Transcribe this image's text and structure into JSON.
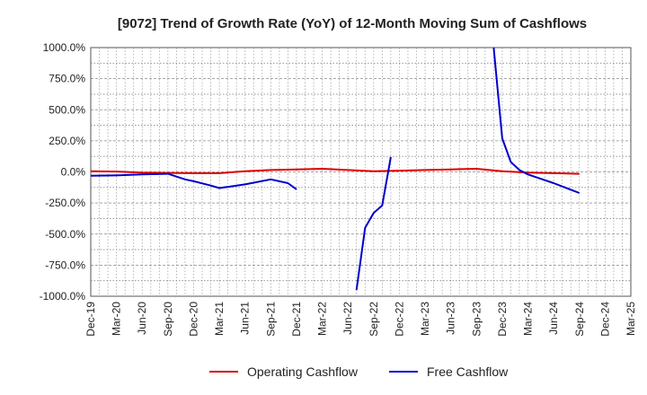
{
  "chart_data": {
    "type": "line",
    "title": "[9072]  Trend of Growth Rate (YoY) of 12-Month Moving Sum of Cashflows",
    "xlabel": "",
    "ylabel": "",
    "ylim": [
      -1000,
      1000
    ],
    "y_ticks": [
      "1000.0%",
      "750.0%",
      "500.0%",
      "250.0%",
      "0.0%",
      "-250.0%",
      "-500.0%",
      "-750.0%",
      "-1000.0%"
    ],
    "y_tick_values": [
      1000,
      750,
      500,
      250,
      0,
      -250,
      -500,
      -750,
      -1000
    ],
    "x_ticks": [
      "Dec-19",
      "Mar-20",
      "Jun-20",
      "Sep-20",
      "Dec-20",
      "Mar-21",
      "Jun-21",
      "Sep-21",
      "Dec-21",
      "Mar-22",
      "Jun-22",
      "Sep-22",
      "Dec-22",
      "Mar-23",
      "Jun-23",
      "Sep-23",
      "Dec-23",
      "Mar-24",
      "Jun-24",
      "Sep-24",
      "Dec-24",
      "Mar-25"
    ],
    "grid": true,
    "legend_position": "bottom",
    "series": [
      {
        "name": "Operating Cashflow",
        "color": "#dd0000",
        "points": [
          [
            "Dec-19",
            5
          ],
          [
            "Mar-20",
            3
          ],
          [
            "Jun-20",
            -5
          ],
          [
            "Sep-20",
            -8
          ],
          [
            "Dec-20",
            -10
          ],
          [
            "Mar-21",
            -10
          ],
          [
            "Jun-21",
            5
          ],
          [
            "Sep-21",
            15
          ],
          [
            "Dec-21",
            20
          ],
          [
            "Mar-22",
            25
          ],
          [
            "Jun-22",
            15
          ],
          [
            "Sep-22",
            5
          ],
          [
            "Dec-22",
            10
          ],
          [
            "Mar-23",
            15
          ],
          [
            "Jun-23",
            20
          ],
          [
            "Sep-23",
            25
          ],
          [
            "Dec-23",
            5
          ],
          [
            "Mar-24",
            -5
          ],
          [
            "Jun-24",
            -10
          ],
          [
            "Sep-24",
            -15
          ]
        ]
      },
      {
        "name": "Free Cashflow",
        "color": "#0000cc",
        "segments": [
          [
            [
              "Dec-19",
              -30
            ],
            [
              "Mar-20",
              -28
            ],
            [
              "Jun-20",
              -20
            ],
            [
              "Sep-20",
              -15
            ],
            [
              "Nov-20",
              -60
            ],
            [
              "Dec-20",
              -75
            ],
            [
              "Feb-21",
              -110
            ],
            [
              "Mar-21",
              -130
            ],
            [
              "Jun-21",
              -100
            ],
            [
              "Sep-21",
              -60
            ],
            [
              "Nov-21",
              -90
            ],
            [
              "Dec-21",
              -140
            ]
          ],
          [
            [
              "Jul-22",
              -950
            ],
            [
              "Aug-22",
              -450
            ],
            [
              "Sep-22",
              -330
            ],
            [
              "Oct-22",
              -270
            ],
            [
              "Nov-22",
              120
            ]
          ],
          [
            [
              "Nov-23",
              1000
            ],
            [
              "Dec-23",
              270
            ],
            [
              "Jan-24",
              80
            ],
            [
              "Feb-24",
              15
            ],
            [
              "Mar-24",
              -20
            ],
            [
              "Jun-24",
              -90
            ],
            [
              "Sep-24",
              -170
            ]
          ]
        ]
      }
    ]
  }
}
